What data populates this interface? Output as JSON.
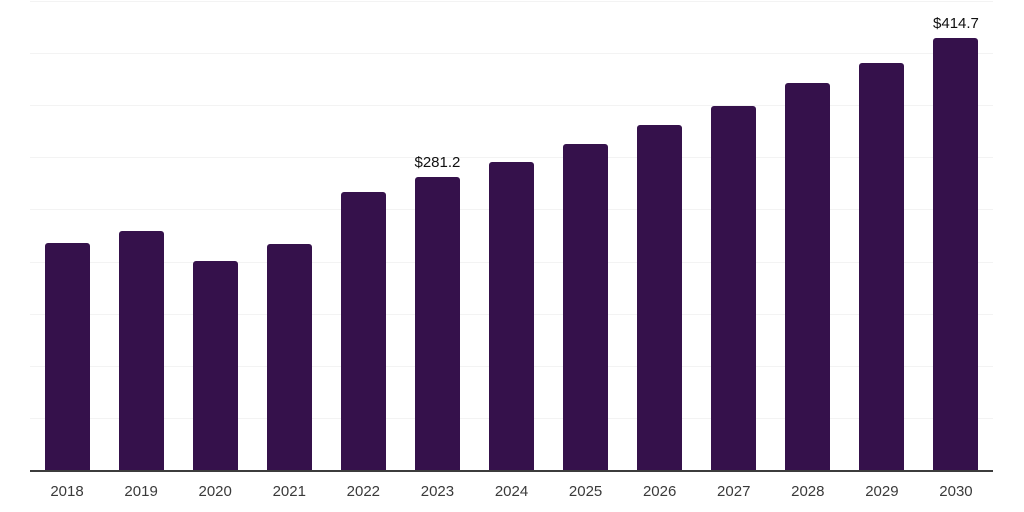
{
  "chart": {
    "bar_color": "#35114B",
    "gridline_color": "#f3f3f3",
    "axis_line_color": "#3c3c3c",
    "tick_label_color": "#3a3a3a",
    "value_label_color": "#101010",
    "background_color": "#ffffff"
  },
  "chart_data": {
    "type": "bar",
    "title": "",
    "xlabel": "",
    "ylabel": "",
    "categories": [
      "2018",
      "2019",
      "2020",
      "2021",
      "2022",
      "2023",
      "2024",
      "2025",
      "2026",
      "2027",
      "2028",
      "2029",
      "2030"
    ],
    "values": [
      218,
      229,
      201,
      217,
      267,
      281.2,
      296,
      313,
      331,
      349,
      371,
      391,
      414.7
    ],
    "point_labels": [
      "",
      "",
      "",
      "",
      "",
      "$281.2",
      "",
      "",
      "",
      "",
      "",
      "",
      "$414.7"
    ],
    "ylim": [
      0,
      450
    ],
    "gridline_step": 50,
    "grid": "horizontal",
    "legend": "none"
  }
}
